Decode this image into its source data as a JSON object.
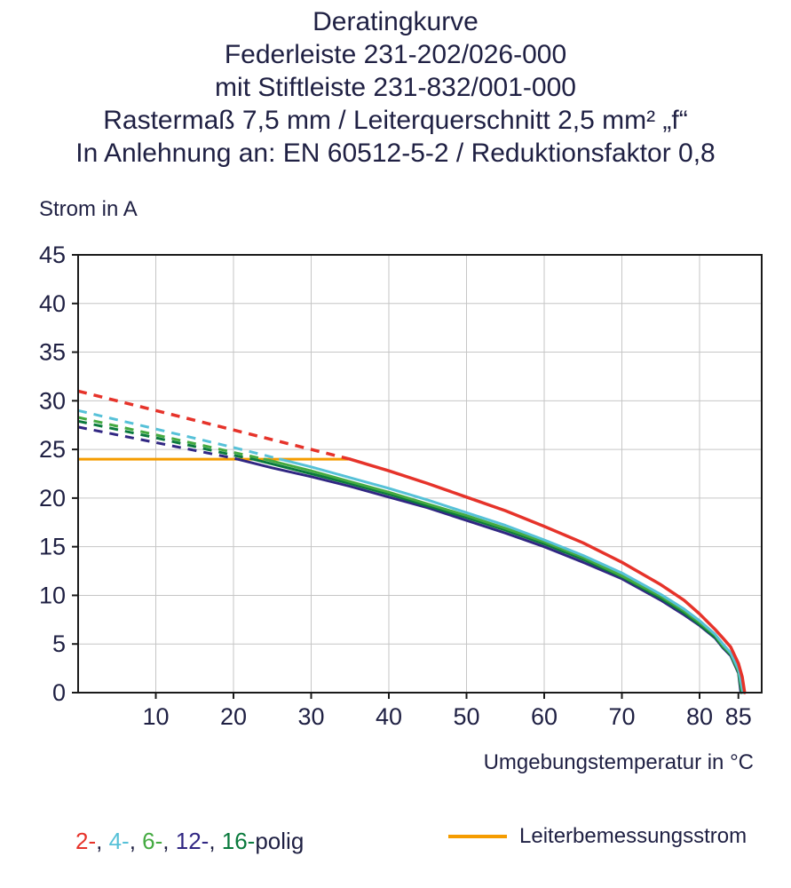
{
  "title": {
    "lines": [
      "Deratingkurve",
      "Federleiste 231-202/026-000",
      "mit Stiftleiste 231-832/001-000",
      "Rastermaß 7,5 mm / Leiterquerschnitt 2,5 mm² „f“",
      "In Anlehnung an: EN 60512-5-2 / Reduktionsfaktor 0,8"
    ]
  },
  "axes": {
    "y_title": "Strom in A",
    "x_title": "Umgebungstemperatur in °C"
  },
  "legend": {
    "poles_segments": [
      {
        "text": "2-",
        "color": "#e6332a"
      },
      {
        "text": ", ",
        "color": "#1f2043"
      },
      {
        "text": "4-",
        "color": "#56c1d8"
      },
      {
        "text": ", ",
        "color": "#1f2043"
      },
      {
        "text": "6-",
        "color": "#44aa41"
      },
      {
        "text": ", ",
        "color": "#1f2043"
      },
      {
        "text": "12-",
        "color": "#312783"
      },
      {
        "text": ", ",
        "color": "#1f2043"
      },
      {
        "text": "16-",
        "color": "#0a7a3d"
      },
      {
        "text": "polig",
        "color": "#1f2043"
      }
    ],
    "rated_label": "Leiterbemessungsstrom",
    "rated_color": "#f59c00"
  },
  "chart_data": {
    "type": "line",
    "title": "Deratingkurve",
    "xlabel": "Umgebungstemperatur in °C",
    "ylabel": "Strom in A",
    "xlim": [
      0,
      88
    ],
    "ylim": [
      0,
      45
    ],
    "x_ticks": [
      10,
      20,
      30,
      40,
      50,
      60,
      70,
      80,
      85
    ],
    "x_gridlines": [
      10,
      20,
      30,
      40,
      50,
      60,
      70,
      80
    ],
    "y_ticks": [
      0,
      5,
      10,
      15,
      20,
      25,
      30,
      35,
      40,
      45
    ],
    "grid": true,
    "grid_color": "#c6c6c6",
    "axis_color": "#1a1a1a",
    "legend_position": "bottom",
    "rated_current": {
      "label": "Leiterbemessungsstrom",
      "value": 24,
      "x_start": 0,
      "x_end": 34.8,
      "color": "#f59c00",
      "width": 3
    },
    "series": [
      {
        "name": "12-polig",
        "color": "#312783",
        "width": 3,
        "dashed": [
          [
            0,
            27.3
          ],
          [
            10,
            25.7
          ],
          [
            20,
            24.1
          ],
          [
            20.5,
            24
          ]
        ],
        "solid": [
          [
            20.5,
            24
          ],
          [
            25,
            23.1
          ],
          [
            30,
            22.2
          ],
          [
            35,
            21.2
          ],
          [
            40,
            20.1
          ],
          [
            45,
            19.0
          ],
          [
            50,
            17.7
          ],
          [
            55,
            16.4
          ],
          [
            60,
            15.0
          ],
          [
            65,
            13.4
          ],
          [
            70,
            11.7
          ],
          [
            75,
            9.5
          ],
          [
            78,
            8.0
          ],
          [
            80,
            6.9
          ],
          [
            82,
            5.6
          ],
          [
            83,
            4.6
          ],
          [
            84,
            3.8
          ],
          [
            85,
            2.0
          ],
          [
            85.3,
            0
          ]
        ]
      },
      {
        "name": "16-polig",
        "color": "#0a7a3d",
        "width": 3,
        "dashed": [
          [
            0,
            27.9
          ],
          [
            10,
            26.2
          ],
          [
            20,
            24.4
          ],
          [
            22.5,
            24
          ]
        ],
        "solid": [
          [
            22.5,
            24
          ],
          [
            30,
            22.5
          ],
          [
            35,
            21.5
          ],
          [
            40,
            20.4
          ],
          [
            45,
            19.2
          ],
          [
            50,
            18.0
          ],
          [
            55,
            16.7
          ],
          [
            60,
            15.3
          ],
          [
            65,
            13.7
          ],
          [
            70,
            11.9
          ],
          [
            75,
            9.7
          ],
          [
            78,
            8.2
          ],
          [
            80,
            7.0
          ],
          [
            82,
            5.7
          ],
          [
            83,
            4.7
          ],
          [
            84,
            3.9
          ],
          [
            85,
            2.1
          ],
          [
            85.4,
            0
          ]
        ]
      },
      {
        "name": "6-polig",
        "color": "#44aa41",
        "width": 3,
        "dashed": [
          [
            0,
            28.3
          ],
          [
            10,
            26.5
          ],
          [
            20,
            24.7
          ],
          [
            24,
            24
          ]
        ],
        "solid": [
          [
            24,
            24
          ],
          [
            30,
            22.8
          ],
          [
            35,
            21.7
          ],
          [
            40,
            20.6
          ],
          [
            45,
            19.4
          ],
          [
            50,
            18.2
          ],
          [
            55,
            16.9
          ],
          [
            60,
            15.5
          ],
          [
            65,
            13.9
          ],
          [
            70,
            12.0
          ],
          [
            75,
            9.9
          ],
          [
            78,
            8.4
          ],
          [
            80,
            7.2
          ],
          [
            82,
            5.9
          ],
          [
            83,
            4.8
          ],
          [
            84,
            4.0
          ],
          [
            85,
            2.2
          ],
          [
            85.5,
            0
          ]
        ]
      },
      {
        "name": "4-polig",
        "color": "#56c1d8",
        "width": 3,
        "dashed": [
          [
            0,
            29
          ],
          [
            10,
            27.1
          ],
          [
            20,
            25.2
          ],
          [
            26,
            24
          ]
        ],
        "solid": [
          [
            26,
            24
          ],
          [
            30,
            23.2
          ],
          [
            35,
            22.1
          ],
          [
            40,
            21.0
          ],
          [
            45,
            19.8
          ],
          [
            50,
            18.5
          ],
          [
            55,
            17.2
          ],
          [
            60,
            15.7
          ],
          [
            65,
            14.1
          ],
          [
            70,
            12.3
          ],
          [
            75,
            10.1
          ],
          [
            78,
            8.6
          ],
          [
            80,
            7.4
          ],
          [
            82,
            6.0
          ],
          [
            83,
            5.0
          ],
          [
            84,
            4.1
          ],
          [
            85,
            2.4
          ],
          [
            85.6,
            0
          ]
        ]
      },
      {
        "name": "2-polig",
        "color": "#e6332a",
        "width": 3.5,
        "dashed": [
          [
            0,
            31
          ],
          [
            10,
            29
          ],
          [
            20,
            27
          ],
          [
            30,
            25
          ],
          [
            35,
            24
          ]
        ],
        "solid": [
          [
            35,
            24
          ],
          [
            40,
            22.8
          ],
          [
            45,
            21.5
          ],
          [
            50,
            20.1
          ],
          [
            55,
            18.7
          ],
          [
            60,
            17.1
          ],
          [
            65,
            15.4
          ],
          [
            70,
            13.4
          ],
          [
            75,
            11.1
          ],
          [
            78,
            9.5
          ],
          [
            80,
            8.1
          ],
          [
            82,
            6.5
          ],
          [
            83,
            5.6
          ],
          [
            84,
            4.7
          ],
          [
            85,
            3.0
          ],
          [
            85.5,
            1.6
          ],
          [
            85.8,
            0
          ]
        ]
      }
    ]
  }
}
